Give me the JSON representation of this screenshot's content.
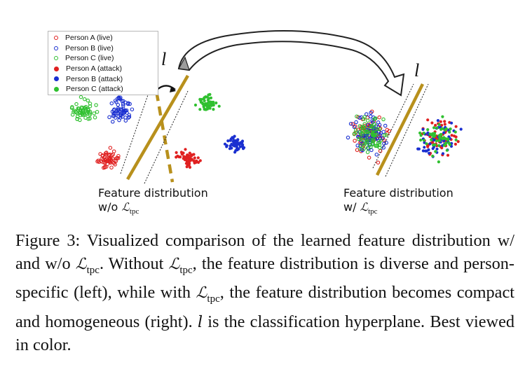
{
  "figure": {
    "legend": [
      {
        "label": "Person A (live)",
        "color": "#e02020",
        "style": "hollow"
      },
      {
        "label": "Person B (live)",
        "color": "#1a2fd0",
        "style": "hollow"
      },
      {
        "label": "Person C (live)",
        "color": "#2fc02f",
        "style": "hollow"
      },
      {
        "label": "Person A (attack)",
        "color": "#e02020",
        "style": "filled"
      },
      {
        "label": "Person B (attack)",
        "color": "#1a2fd0",
        "style": "filled"
      },
      {
        "label": "Person C (attack)",
        "color": "#2fc02f",
        "style": "filled"
      }
    ],
    "hyperplane_symbol": "l",
    "hyperplane_color": "#b8901c",
    "left_panel": {
      "label_line1": "Feature distribution",
      "label_prefix": "w/o ",
      "label_symbol": "ℒ",
      "label_sub": "tpc"
    },
    "right_panel": {
      "label_line1": "Feature distribution",
      "label_prefix": "w/ ",
      "label_symbol": "ℒ",
      "label_sub": "tpc"
    }
  },
  "caption": {
    "part1": "Figure 3: Visualized comparison of the learned feature distribution w/ and w/o ",
    "sym": "ℒ",
    "sub": "tpc",
    "part2": ". Without ",
    "part3": ", the feature distribution is diverse and person-specific (left), while with ",
    "part4": ", the feature distribution becomes compact and homogeneous (right). ",
    "l": "l",
    "part5": " is the classification hyperplane. Best viewed in color."
  }
}
